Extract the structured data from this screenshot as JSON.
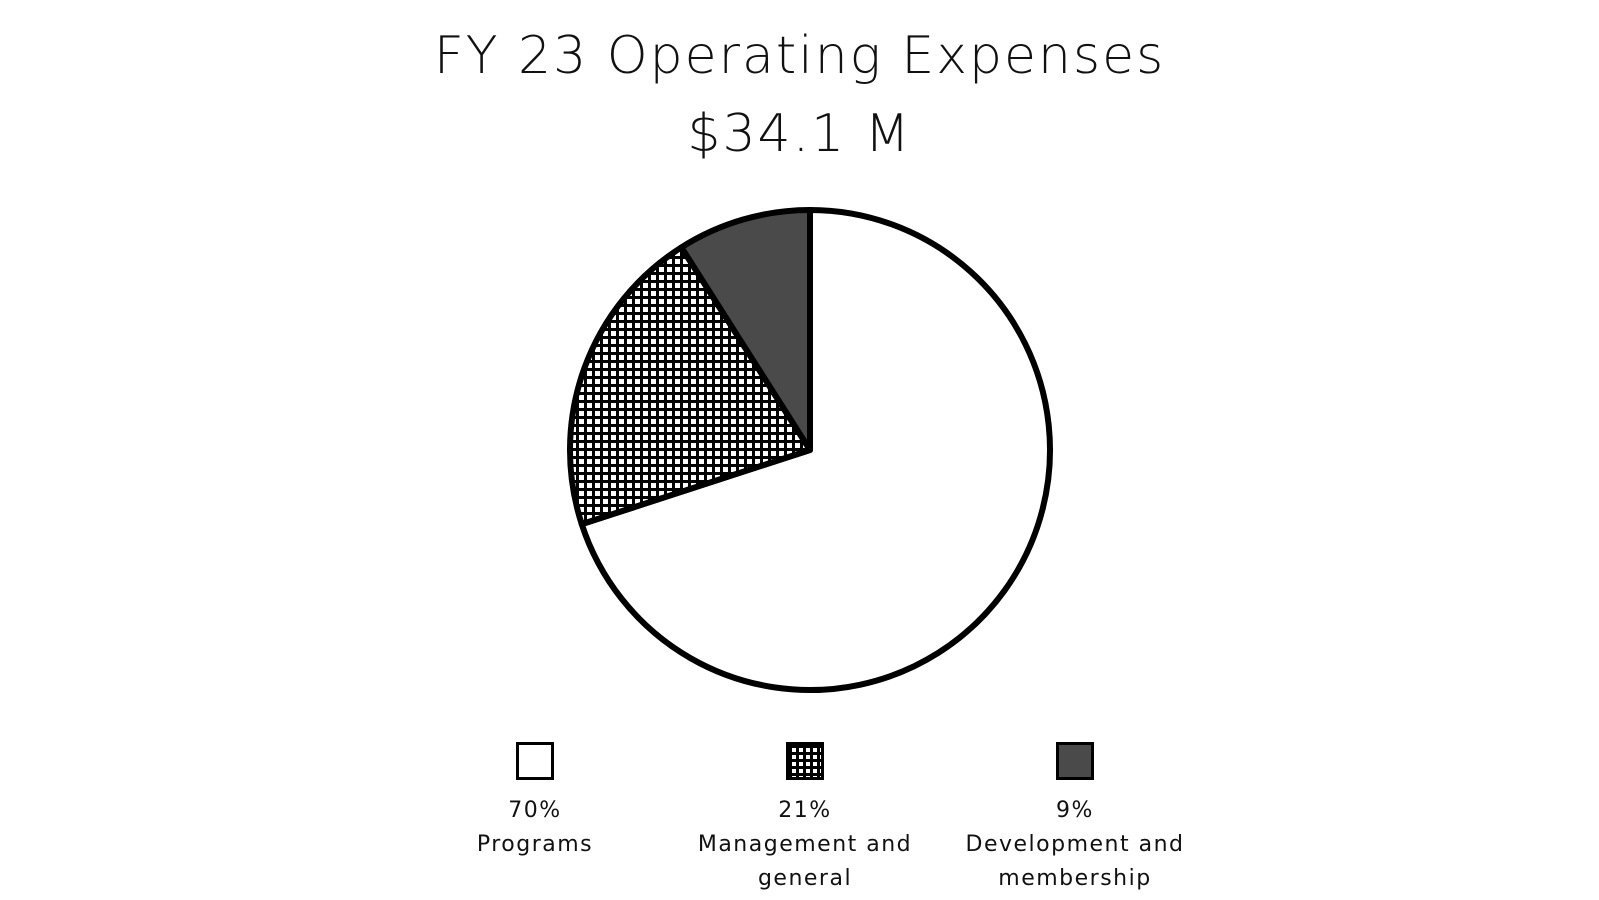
{
  "chart_data": {
    "type": "pie",
    "title": "FY 23 Operating Expenses",
    "subtitle": "$34.1 M",
    "slices": [
      {
        "label": "Programs",
        "value": 70,
        "display": "70%",
        "fill": "#ffffff",
        "pattern": "none"
      },
      {
        "label": "Management and general",
        "value": 21,
        "display": "21%",
        "fill": "#ffffff",
        "pattern": "grid"
      },
      {
        "label": "Development and membership",
        "value": 9,
        "display": "9%",
        "fill": "#4a4a4a",
        "pattern": "none"
      }
    ],
    "legend_position": "bottom",
    "colors": {
      "outline": "#000000",
      "dark_fill": "#4a4a4a",
      "light_fill": "#ffffff"
    }
  }
}
